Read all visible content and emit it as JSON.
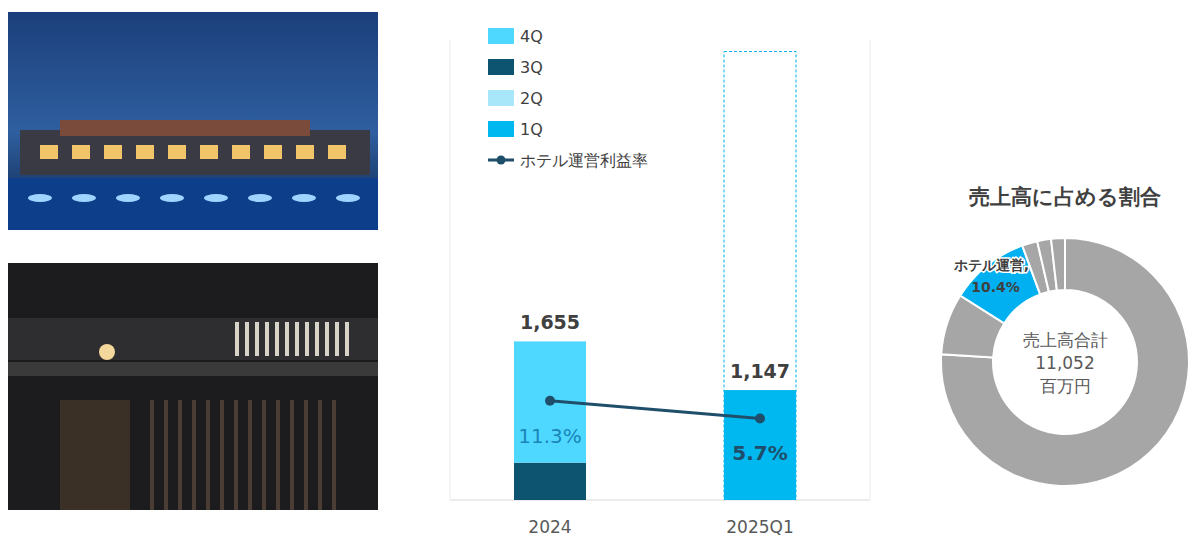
{
  "chart_data": [
    {
      "type": "bar",
      "stacked": true,
      "tick_labels": "x",
      "legend": "top-left",
      "data_labels": true,
      "categories": [
        "2024",
        "2025Q1"
      ],
      "ylim": [
        0,
        4800
      ],
      "yticks": [
        0
      ],
      "y2lim": [
        -20,
        125
      ],
      "y2ticks": [],
      "series": [
        {
          "type": "outline",
          "color": "#00b0f0",
          "line_style": "dashed",
          "values": [
            null,
            4680
          ]
        },
        {
          "name": "1Q",
          "color": "#00b8f0",
          "values": [
            null,
            1147
          ]
        },
        {
          "name": "2Q",
          "color": "#a8e6fa",
          "values": [
            null,
            null
          ]
        },
        {
          "name": "3Q",
          "color": "#0d5470",
          "values": [
            390,
            null
          ]
        },
        {
          "name": "4Q",
          "color": "#4fd8ff",
          "values": [
            1265,
            null
          ]
        },
        {
          "name": "ホテル運営利益率",
          "type": "line",
          "axis": "y2",
          "color": "#1f4e6b",
          "marker": "circle",
          "values": [
            11.3,
            5.7
          ],
          "value_labels": [
            "11.3%",
            "5.7%"
          ]
        }
      ],
      "totals": [
        1655,
        1147
      ],
      "total_labels": [
        "1,655",
        "1,147"
      ]
    },
    {
      "type": "pie",
      "title": "売上高に占める割合",
      "categories": [
        null,
        null,
        "ホテル運営,",
        null,
        null,
        null
      ],
      "values": [
        76,
        8,
        10.4,
        2,
        1.8,
        1.8
      ],
      "value_labels": [
        null,
        null,
        "10.4%",
        null,
        null,
        null
      ],
      "colors": [
        "#a6a6a6",
        "#a6a6a6",
        "#00b0f0",
        "#a6a6a6",
        "#a6a6a6",
        "#a6a6a6"
      ],
      "center_title": "売上高合計",
      "total": 11052,
      "total_label": "11,052",
      "total_unit": "百万円"
    }
  ]
}
